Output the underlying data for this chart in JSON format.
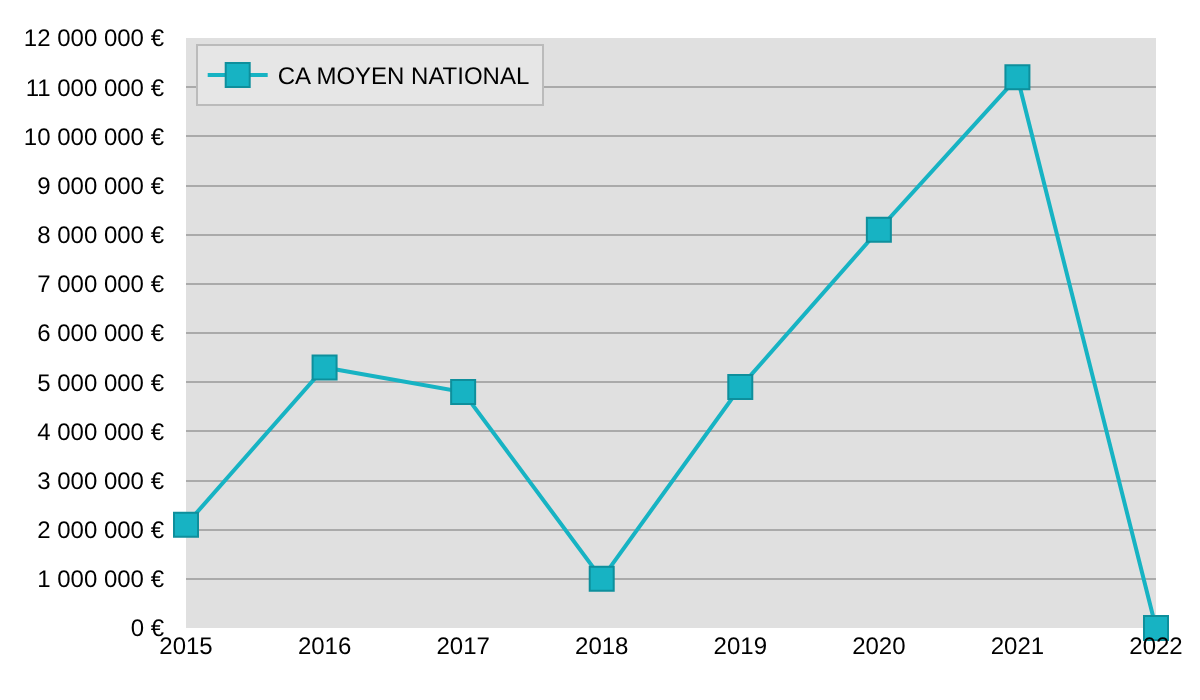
{
  "chart_data": {
    "type": "line",
    "x": [
      2015,
      2016,
      2017,
      2018,
      2019,
      2020,
      2021,
      2022
    ],
    "series": [
      {
        "name": "CA MOYEN NATIONAL",
        "color": "#17b3c3",
        "values": [
          2100000,
          5300000,
          4800000,
          1000000,
          4900000,
          8100000,
          11200000,
          0
        ]
      }
    ],
    "xlim": [
      2015,
      2022
    ],
    "xticks": [
      2015,
      2016,
      2017,
      2018,
      2019,
      2020,
      2021,
      2022
    ],
    "ylim": [
      0,
      12000000
    ],
    "yticks": [
      {
        "value": 0,
        "label": "0 €"
      },
      {
        "value": 1000000,
        "label": "1 000 000 €"
      },
      {
        "value": 2000000,
        "label": "2 000 000 €"
      },
      {
        "value": 3000000,
        "label": "3 000 000 €"
      },
      {
        "value": 4000000,
        "label": "4 000 000 €"
      },
      {
        "value": 5000000,
        "label": "5 000 000 €"
      },
      {
        "value": 6000000,
        "label": "6 000 000 €"
      },
      {
        "value": 7000000,
        "label": "7 000 000 €"
      },
      {
        "value": 8000000,
        "label": "8 000 000 €"
      },
      {
        "value": 9000000,
        "label": "9 000 000 €"
      },
      {
        "value": 10000000,
        "label": "10 000 000 €"
      },
      {
        "value": 11000000,
        "label": "11 000 000 €"
      },
      {
        "value": 12000000,
        "label": "12 000 000 €"
      }
    ],
    "grid": "y",
    "legend": "top left",
    "marker": "square",
    "line_style": "solid"
  }
}
